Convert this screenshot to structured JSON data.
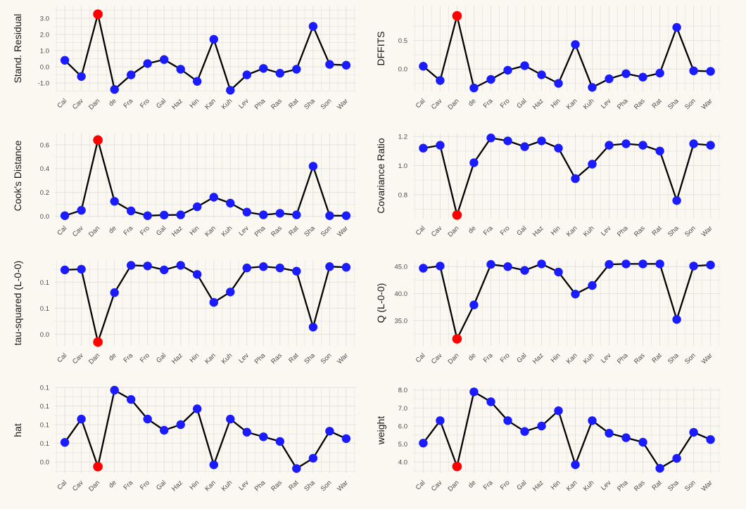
{
  "page": {
    "background": "#FBF8F2"
  },
  "colors": {
    "point": "#1B1BFF",
    "highlight_point": "#FF0000",
    "series_line": "#000000",
    "grid_major": "#E4E2DD",
    "grid_minor": "#ECEAE5",
    "tick_text": "#4A4A4A",
    "axis_title_text": "#161616"
  },
  "highlight": {
    "category": "Dan",
    "index": 2
  },
  "chart_data": [
    {
      "id": "stand-residual",
      "type": "line",
      "ylabel": "Stand. Residual",
      "categories": [
        "Cal",
        "Cav",
        "Dan",
        "de",
        "Fra",
        "Fro",
        "Gal",
        "Haz",
        "Hin",
        "Kan",
        "Kuh",
        "Lev",
        "Pha",
        "Ras",
        "Rat",
        "Sha",
        "Son",
        "War"
      ],
      "values": [
        0.4,
        -0.6,
        3.25,
        -1.4,
        -0.5,
        0.2,
        0.45,
        -0.15,
        -0.9,
        1.7,
        -1.45,
        -0.5,
        -0.1,
        -0.4,
        -0.15,
        2.5,
        0.15,
        0.1
      ],
      "yticks": [
        {
          "value": 3.0,
          "label": "3.0"
        },
        {
          "value": 2.0,
          "label": "2.0"
        },
        {
          "value": 1.0,
          "label": "1.0"
        },
        {
          "value": 0.0,
          "label": "0.0"
        },
        {
          "value": -1.0,
          "label": "-1.0"
        }
      ],
      "ylim": [
        -1.52,
        3.78
      ],
      "grid": true,
      "legend": false
    },
    {
      "id": "dffits",
      "type": "line",
      "ylabel": "DFFITS",
      "categories": [
        "Cal",
        "Cav",
        "Dan",
        "de",
        "Fra",
        "Fro",
        "Gal",
        "Haz",
        "Hin",
        "Kan",
        "Kuh",
        "Lev",
        "Pha",
        "Ras",
        "Rat",
        "Sha",
        "Son",
        "War"
      ],
      "values": [
        0.05,
        -0.2,
        0.93,
        -0.33,
        -0.18,
        -0.02,
        0.06,
        -0.1,
        -0.25,
        0.43,
        -0.32,
        -0.17,
        -0.08,
        -0.14,
        -0.07,
        0.73,
        -0.03,
        -0.04
      ],
      "yticks": [
        {
          "value": 0.5,
          "label": "0.5"
        },
        {
          "value": 0.0,
          "label": "0.0"
        }
      ],
      "ylim": [
        -0.39,
        1.11
      ],
      "grid": true,
      "legend": false
    },
    {
      "id": "cooks-distance",
      "type": "line",
      "ylabel": "Cook's Distance",
      "categories": [
        "Cal",
        "Cav",
        "Dan",
        "de",
        "Fra",
        "Fro",
        "Gal",
        "Haz",
        "Hin",
        "Kan",
        "Kuh",
        "Lev",
        "Pha",
        "Ras",
        "Rat",
        "Sha",
        "Son",
        "War"
      ],
      "values": [
        0.005,
        0.05,
        0.64,
        0.125,
        0.045,
        0.005,
        0.01,
        0.012,
        0.08,
        0.16,
        0.11,
        0.035,
        0.012,
        0.025,
        0.012,
        0.42,
        0.005,
        0.005
      ],
      "yticks": [
        {
          "value": 0.6,
          "label": "0.6"
        },
        {
          "value": 0.4,
          "label": "0.4"
        },
        {
          "value": 0.2,
          "label": "0.2"
        },
        {
          "value": 0.0,
          "label": "0.0"
        }
      ],
      "ylim": [
        -0.02,
        0.7
      ],
      "grid": true,
      "legend": false
    },
    {
      "id": "covariance-ratio",
      "type": "line",
      "ylabel": "Covariance Ratio",
      "categories": [
        "Cal",
        "Cav",
        "Dan",
        "de",
        "Fra",
        "Fro",
        "Gal",
        "Haz",
        "Hin",
        "Kan",
        "Kuh",
        "Lev",
        "Pha",
        "Ras",
        "Rat",
        "Sha",
        "Son",
        "War"
      ],
      "values": [
        1.12,
        1.14,
        0.66,
        1.02,
        1.19,
        1.17,
        1.13,
        1.17,
        1.12,
        0.91,
        1.01,
        1.14,
        1.15,
        1.14,
        1.1,
        0.76,
        1.15,
        1.14
      ],
      "yticks": [
        {
          "value": 1.2,
          "label": "1.2"
        },
        {
          "value": 1.0,
          "label": "1.0"
        },
        {
          "value": 0.8,
          "label": "0.8"
        }
      ],
      "ylim": [
        0.635,
        1.225
      ],
      "grid": true,
      "legend": false
    },
    {
      "id": "tau-squared",
      "type": "line",
      "ylabel": "tau-squared (L-0-0)",
      "categories": [
        "Cal",
        "Cav",
        "Dan",
        "de",
        "Fra",
        "Fro",
        "Gal",
        "Haz",
        "Hin",
        "Kan",
        "Kuh",
        "Lev",
        "Pha",
        "Ras",
        "Rat",
        "Sha",
        "Son",
        "War"
      ],
      "values": [
        0.139,
        0.14,
        0.028,
        0.104,
        0.146,
        0.145,
        0.139,
        0.146,
        0.132,
        0.089,
        0.105,
        0.142,
        0.144,
        0.142,
        0.137,
        0.051,
        0.144,
        0.143
      ],
      "yticks": [
        {
          "value": 0.12,
          "label": "0.1"
        },
        {
          "value": 0.08,
          "label": "0.1"
        },
        {
          "value": 0.04,
          "label": "0.0"
        }
      ],
      "ylim": [
        0.022,
        0.154
      ],
      "grid": true,
      "legend": false
    },
    {
      "id": "q",
      "type": "line",
      "ylabel": "Q (L-0-0)",
      "categories": [
        "Cal",
        "Cav",
        "Dan",
        "de",
        "Fra",
        "Fro",
        "Gal",
        "Haz",
        "Hin",
        "Kan",
        "Kuh",
        "Lev",
        "Pha",
        "Ras",
        "Rat",
        "Sha",
        "Son",
        "War"
      ],
      "values": [
        44.7,
        45.1,
        31.6,
        37.9,
        45.4,
        45.0,
        44.3,
        45.5,
        44.0,
        39.9,
        41.5,
        45.4,
        45.5,
        45.5,
        45.5,
        35.2,
        45.1,
        45.3
      ],
      "yticks": [
        {
          "value": 45.0,
          "label": "45.0"
        },
        {
          "value": 40.0,
          "label": "40.0"
        },
        {
          "value": 35.0,
          "label": "35.0"
        }
      ],
      "ylim": [
        30.3,
        46.2
      ],
      "grid": true,
      "legend": false
    },
    {
      "id": "hat",
      "type": "line",
      "ylabel": "hat",
      "categories": [
        "Cal",
        "Cav",
        "Dan",
        "de",
        "Fra",
        "Fro",
        "Gal",
        "Haz",
        "Hin",
        "Kan",
        "Kuh",
        "Lev",
        "Pha",
        "Ras",
        "Rat",
        "Sha",
        "Son",
        "War"
      ],
      "values": [
        0.0505,
        0.063,
        0.0375,
        0.0785,
        0.0735,
        0.063,
        0.057,
        0.06,
        0.0685,
        0.0385,
        0.063,
        0.056,
        0.0535,
        0.051,
        0.0365,
        0.042,
        0.0565,
        0.0525
      ],
      "yticks": [
        {
          "value": 0.08,
          "label": "0.1"
        },
        {
          "value": 0.07,
          "label": "0.1"
        },
        {
          "value": 0.06,
          "label": "0.1"
        },
        {
          "value": 0.05,
          "label": "0.1"
        },
        {
          "value": 0.04,
          "label": "0.0"
        }
      ],
      "ylim": [
        0.034,
        0.08
      ],
      "grid": true,
      "legend": false
    },
    {
      "id": "weight",
      "type": "line",
      "ylabel": "weight",
      "categories": [
        "Cal",
        "Cav",
        "Dan",
        "de",
        "Fra",
        "Fro",
        "Gal",
        "Haz",
        "Hin",
        "Kan",
        "Kuh",
        "Lev",
        "Pha",
        "Ras",
        "Rat",
        "Sha",
        "Son",
        "War"
      ],
      "values": [
        5.05,
        6.3,
        3.75,
        7.9,
        7.35,
        6.3,
        5.7,
        6.0,
        6.85,
        3.85,
        6.3,
        5.6,
        5.35,
        5.1,
        3.65,
        4.2,
        5.65,
        5.25
      ],
      "yticks": [
        {
          "value": 8.0,
          "label": "8.0"
        },
        {
          "value": 7.0,
          "label": "7.0"
        },
        {
          "value": 6.0,
          "label": "6.0"
        },
        {
          "value": 5.0,
          "label": "5.0"
        },
        {
          "value": 4.0,
          "label": "4.0"
        }
      ],
      "ylim": [
        3.38,
        8.15
      ],
      "grid": true,
      "legend": false
    }
  ]
}
